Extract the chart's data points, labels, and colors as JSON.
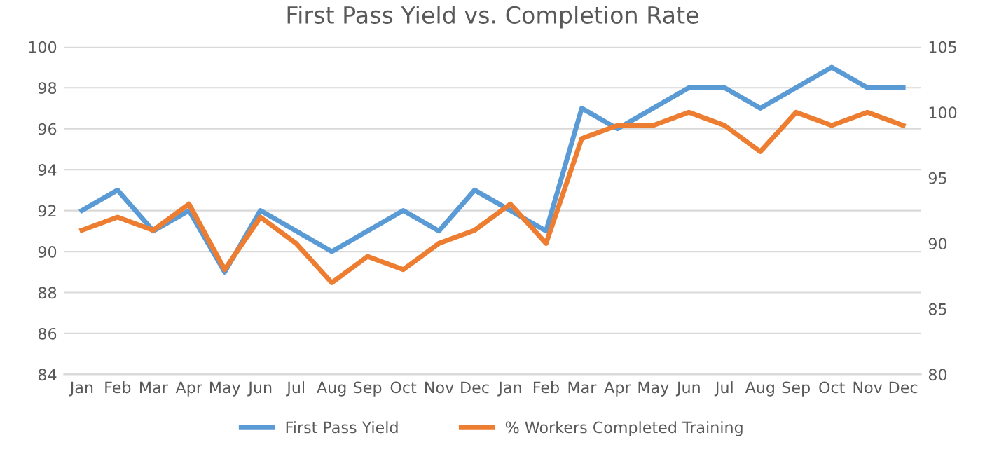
{
  "chart_data": {
    "type": "line",
    "title": "First Pass Yield vs. Completion Rate",
    "categories": [
      "Jan",
      "Feb",
      "Mar",
      "Apr",
      "May",
      "Jun",
      "Jul",
      "Aug",
      "Sep",
      "Oct",
      "Nov",
      "Dec",
      "Jan",
      "Feb",
      "Mar",
      "Apr",
      "May",
      "Jun",
      "Jul",
      "Aug",
      "Sep",
      "Oct",
      "Nov",
      "Dec"
    ],
    "series": [
      {
        "name": "First Pass Yield",
        "color": "#5b9bd5",
        "values": [
          92,
          93,
          91,
          92,
          89,
          92,
          91,
          90,
          91,
          92,
          91,
          93,
          92,
          91,
          97,
          96,
          97,
          98,
          98,
          97,
          98,
          99,
          98,
          98
        ]
      },
      {
        "name": "% Workers Completed Training",
        "color": "#ed7d31",
        "axis": "y2",
        "values": [
          91,
          92,
          91,
          93,
          88,
          92,
          90,
          87,
          89,
          88,
          90,
          91,
          93,
          90,
          98,
          99,
          99,
          100,
          99,
          97,
          100,
          99,
          100,
          99
        ]
      }
    ],
    "ylim": [
      84,
      100
    ],
    "yticks": [
      84,
      86,
      88,
      90,
      92,
      94,
      96,
      98,
      100
    ],
    "y2lim": [
      80,
      105
    ],
    "y2ticks": [
      80,
      85,
      90,
      95,
      100,
      105
    ],
    "grid": "y",
    "legend": "bottom",
    "marker": "none",
    "line_style": "solid"
  }
}
